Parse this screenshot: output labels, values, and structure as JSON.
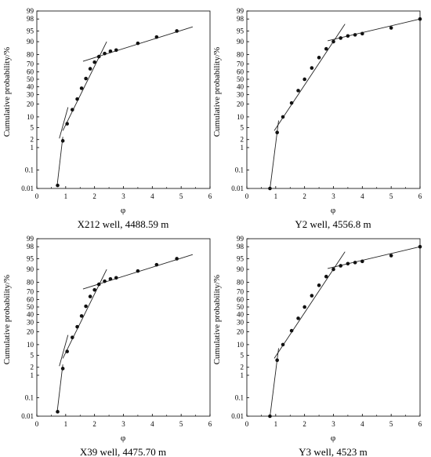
{
  "chart_data": [
    {
      "type": "scatter",
      "title": "X212 well, 4488.59 m",
      "xlabel": "φ",
      "ylabel": "Cumulative probability/%",
      "xlim": [
        0,
        6
      ],
      "x_ticks": [
        "0",
        "1",
        "2",
        "3",
        "4",
        "5",
        "6"
      ],
      "y_scale": "probability",
      "y_ticks": [
        "0.01",
        "0.1",
        "1",
        "2",
        "5",
        "10",
        "20",
        "30",
        "40",
        "50",
        "60",
        "70",
        "80",
        "90",
        "95",
        "98",
        "99"
      ],
      "ylim": [
        0.01,
        99
      ],
      "grid": false,
      "points": {
        "x": [
          0.72,
          0.9,
          1.05,
          1.23,
          1.4,
          1.55,
          1.7,
          1.85,
          2.0,
          2.15,
          2.35,
          2.55,
          2.75,
          3.5,
          4.15,
          4.85
        ],
        "y": [
          0.015,
          1.8,
          6.5,
          15,
          25,
          38,
          51,
          64,
          72,
          78,
          81,
          83,
          84,
          89,
          92.5,
          95
        ]
      },
      "fit_lines": [
        {
          "x": [
            0.7,
            0.9
          ],
          "y": [
            0.013,
            2.5
          ]
        },
        {
          "x": [
            0.78,
            1.08
          ],
          "y": [
            2.2,
            17
          ]
        },
        {
          "x": [
            0.9,
            2.42
          ],
          "y": [
            4,
            90
          ]
        },
        {
          "x": [
            1.6,
            5.4
          ],
          "y": [
            73,
            96.3
          ]
        }
      ]
    },
    {
      "type": "scatter",
      "title": "Y2 well, 4556.8 m",
      "xlabel": "φ",
      "ylabel": "Cumulative probability/%",
      "xlim": [
        0,
        6
      ],
      "x_ticks": [
        "0",
        "1",
        "2",
        "3",
        "4",
        "5",
        "6"
      ],
      "y_scale": "probability",
      "y_ticks": [
        "0.01",
        "0.1",
        "1",
        "2",
        "5",
        "10",
        "20",
        "30",
        "40",
        "50",
        "60",
        "70",
        "80",
        "90",
        "95",
        "98",
        "99"
      ],
      "ylim": [
        0.01,
        99
      ],
      "grid": false,
      "points": {
        "x": [
          0.8,
          1.05,
          1.25,
          1.55,
          1.78,
          2.0,
          2.25,
          2.5,
          2.75,
          3.0,
          3.25,
          3.5,
          3.75,
          4.0,
          5.0,
          6.0
        ],
        "y": [
          0.01,
          3.5,
          10,
          21,
          35,
          50,
          65,
          77,
          85,
          90,
          92,
          93,
          93.5,
          94,
          96,
          98
        ]
      },
      "fit_lines": [
        {
          "x": [
            0.8,
            1.1
          ],
          "y": [
            0.009,
            8
          ]
        },
        {
          "x": [
            0.95,
            3.4
          ],
          "y": [
            4,
            97
          ]
        },
        {
          "x": [
            2.8,
            6.0
          ],
          "y": [
            90.5,
            98
          ]
        }
      ]
    },
    {
      "type": "scatter",
      "title": "X39 well, 4475.70 m",
      "xlabel": "φ",
      "ylabel": "Cumulative probability/%",
      "xlim": [
        0,
        6
      ],
      "x_ticks": [
        "0",
        "1",
        "2",
        "3",
        "4",
        "5",
        "6"
      ],
      "y_scale": "probability",
      "y_ticks": [
        "0.01",
        "0.1",
        "1",
        "2",
        "5",
        "10",
        "20",
        "30",
        "40",
        "50",
        "60",
        "70",
        "80",
        "90",
        "95",
        "98",
        "99"
      ],
      "ylim": [
        0.01,
        99
      ],
      "grid": false,
      "points": {
        "x": [
          0.72,
          0.9,
          1.05,
          1.23,
          1.4,
          1.55,
          1.7,
          1.85,
          2.0,
          2.15,
          2.35,
          2.55,
          2.75,
          3.5,
          4.15,
          4.85
        ],
        "y": [
          0.018,
          1.8,
          6.5,
          15,
          25,
          38,
          51,
          64,
          72,
          78,
          81,
          83,
          84,
          89,
          92.5,
          95
        ]
      },
      "fit_lines": [
        {
          "x": [
            0.7,
            0.9
          ],
          "y": [
            0.015,
            2.5
          ]
        },
        {
          "x": [
            0.78,
            1.08
          ],
          "y": [
            2.2,
            17
          ]
        },
        {
          "x": [
            0.9,
            2.42
          ],
          "y": [
            4,
            90
          ]
        },
        {
          "x": [
            1.6,
            5.4
          ],
          "y": [
            73,
            96.3
          ]
        }
      ]
    },
    {
      "type": "scatter",
      "title": "Y3 well, 4523 m",
      "xlabel": "φ",
      "ylabel": "Cumulative probability/%",
      "xlim": [
        0,
        6
      ],
      "x_ticks": [
        "0",
        "1",
        "2",
        "3",
        "4",
        "5",
        "6"
      ],
      "y_scale": "probability",
      "y_ticks": [
        "0.01",
        "0.1",
        "1",
        "2",
        "5",
        "10",
        "20",
        "30",
        "40",
        "50",
        "60",
        "70",
        "80",
        "90",
        "95",
        "98",
        "99"
      ],
      "ylim": [
        0.01,
        99
      ],
      "grid": false,
      "points": {
        "x": [
          0.8,
          1.05,
          1.25,
          1.55,
          1.78,
          2.0,
          2.25,
          2.5,
          2.75,
          3.0,
          3.25,
          3.5,
          3.75,
          4.0,
          5.0,
          6.0
        ],
        "y": [
          0.01,
          3.5,
          10,
          21,
          35,
          50,
          65,
          77,
          85,
          90,
          92,
          93,
          93.5,
          94,
          96,
          98
        ]
      },
      "fit_lines": [
        {
          "x": [
            0.8,
            1.1
          ],
          "y": [
            0.009,
            8
          ]
        },
        {
          "x": [
            0.95,
            3.4
          ],
          "y": [
            4,
            97
          ]
        },
        {
          "x": [
            2.8,
            6.0
          ],
          "y": [
            90.5,
            98
          ]
        }
      ]
    }
  ]
}
